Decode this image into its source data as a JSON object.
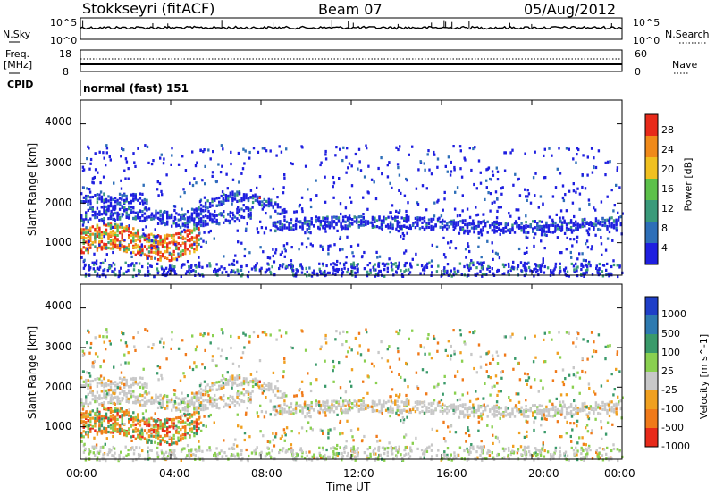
{
  "header": {
    "station": "Stokkseyri (fitACF)",
    "beam": "Beam 07",
    "date": "05/Aug/2012"
  },
  "top_panels": {
    "nsky_label": "N.Sky",
    "nsky_top": "10^5",
    "nsky_bottom": "10^0",
    "nsearch_label": "N.Search",
    "nsearch_top": "10^5",
    "nsearch_bottom": "10^0",
    "freq_label": "Freq.",
    "freq_unit": "[MHz]",
    "freq_top": "18",
    "freq_bottom": "8",
    "nave_label": "Nave",
    "nave_top": "60",
    "nave_bottom": "0",
    "cpid_label": "CPID",
    "cpid_value": "normal (fast) 151"
  },
  "chart_data": [
    {
      "type": "heatmap",
      "name": "power",
      "ylabel": "Slant Range [km]",
      "ylim": [
        180,
        4600
      ],
      "yticks": [
        "1000",
        "2000",
        "3000",
        "4000"
      ],
      "colorbar_label": "Power [dB]",
      "colorbar_ticks": [
        "4",
        "8",
        "12",
        "16",
        "20",
        "24",
        "28"
      ],
      "colors": [
        "#1f1fe0",
        "#2e6fb8",
        "#3a9a7a",
        "#5cc04a",
        "#f0c020",
        "#f08a1a",
        "#e82a1a"
      ]
    },
    {
      "type": "heatmap",
      "name": "velocity",
      "ylabel": "Slant Range [km]",
      "ylim": [
        180,
        4600
      ],
      "yticks": [
        "1000",
        "2000",
        "3000",
        "4000"
      ],
      "colorbar_label": "Velocity [m s^-1]",
      "colorbar_ticks": [
        "1000",
        "500",
        "100",
        "25",
        "-25",
        "-100",
        "-500",
        "-1000"
      ],
      "colors": [
        "#1f3fc8",
        "#2e7ab0",
        "#3a9a6a",
        "#8ad050",
        "#c8c8c8",
        "#f0a020",
        "#f07a1a",
        "#e82a1a"
      ]
    }
  ],
  "xaxis": {
    "label": "Time UT",
    "ticks": [
      "00:00",
      "04:00",
      "08:00",
      "12:00",
      "16:00",
      "20:00",
      "00:00"
    ]
  }
}
